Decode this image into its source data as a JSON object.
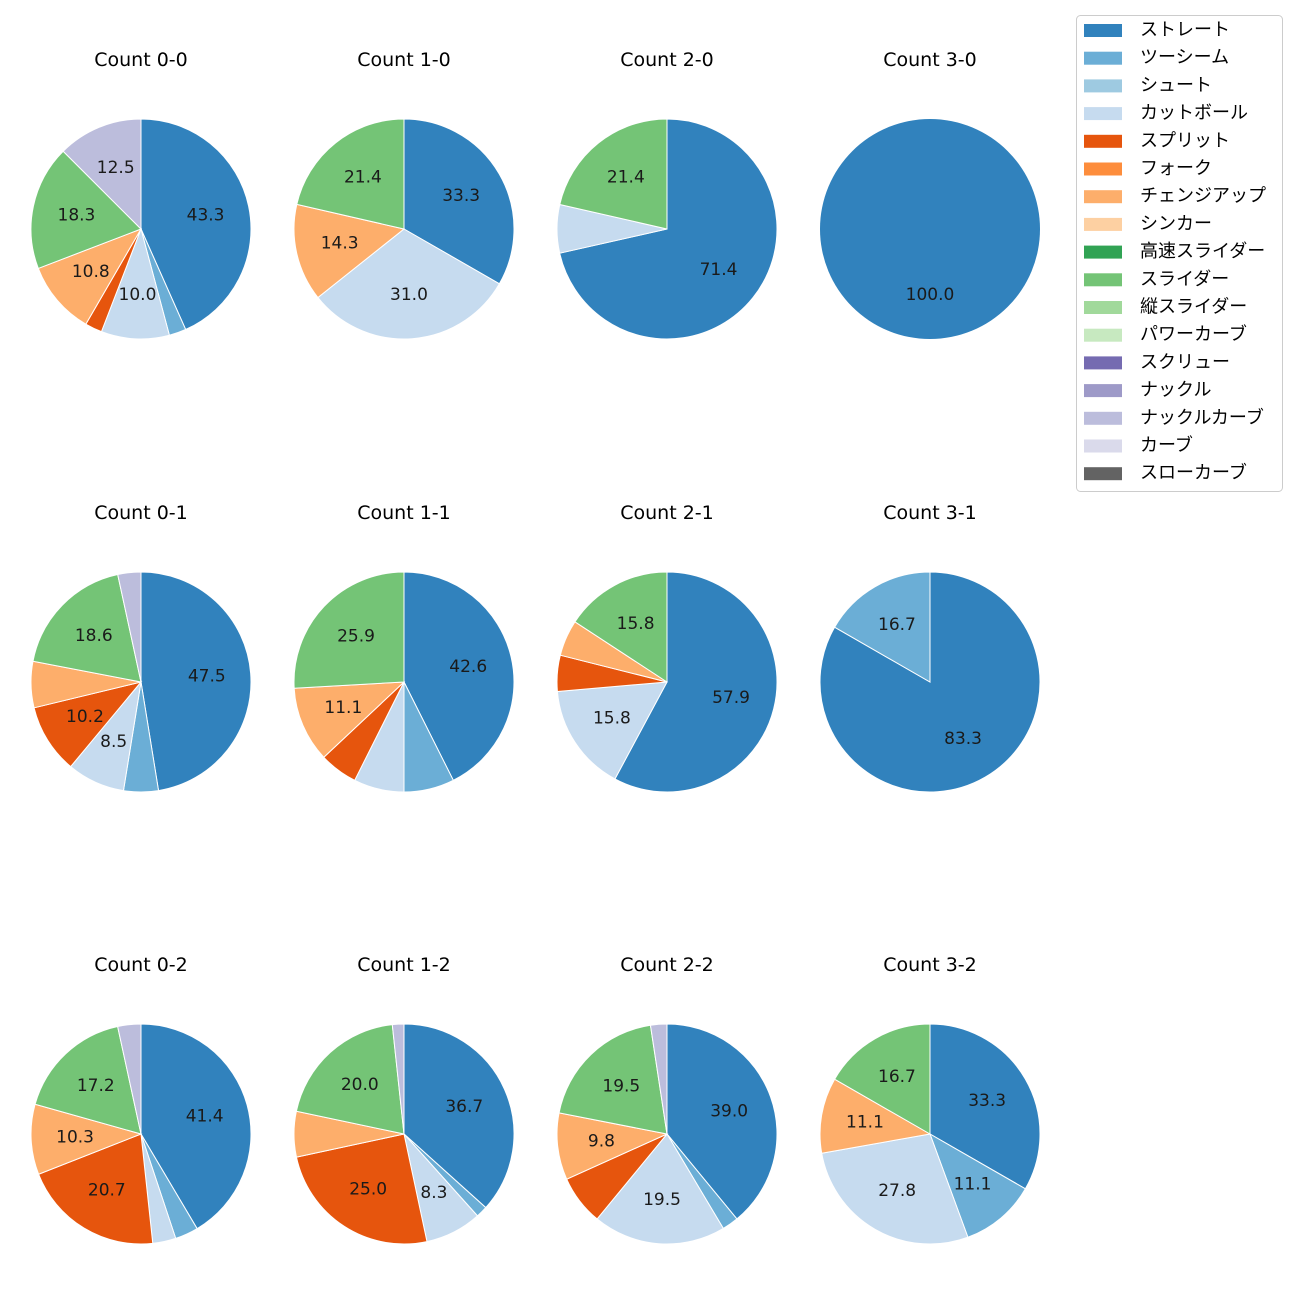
{
  "chart_data": {
    "type": "pie",
    "label_format": "percent, 1 decimal, shown for slices >= 8%",
    "legend": {
      "placement": "top-right",
      "entries": [
        {
          "name": "ストレート",
          "color": "#3182bd"
        },
        {
          "name": "ツーシーム",
          "color": "#6baed6"
        },
        {
          "name": "シュート",
          "color": "#9ecae1"
        },
        {
          "name": "カットボール",
          "color": "#c6dbef"
        },
        {
          "name": "スプリット",
          "color": "#e6550d"
        },
        {
          "name": "フォーク",
          "color": "#fd8d3c"
        },
        {
          "name": "チェンジアップ",
          "color": "#fdae6b"
        },
        {
          "name": "シンカー",
          "color": "#fdd0a2"
        },
        {
          "name": "高速スライダー",
          "color": "#31a354"
        },
        {
          "name": "スライダー",
          "color": "#74c476"
        },
        {
          "name": "縦スライダー",
          "color": "#a1d99b"
        },
        {
          "name": "パワーカーブ",
          "color": "#c7e9c0"
        },
        {
          "name": "スクリュー",
          "color": "#756bb1"
        },
        {
          "name": "ナックル",
          "color": "#9e9ac8"
        },
        {
          "name": "ナックルカーブ",
          "color": "#bcbddc"
        },
        {
          "name": "カーブ",
          "color": "#dadaeb"
        },
        {
          "name": "スローカーブ",
          "color": "#636363"
        }
      ]
    },
    "pies": [
      {
        "title": "Count 0-0",
        "slices": [
          [
            "ストレート",
            43.3
          ],
          [
            "ツーシーム",
            2.5
          ],
          [
            "カットボール",
            10.0
          ],
          [
            "スプリット",
            2.5
          ],
          [
            "チェンジアップ",
            10.8
          ],
          [
            "スライダー",
            18.3
          ],
          [
            "ナックルカーブ",
            12.5
          ]
        ]
      },
      {
        "title": "Count 1-0",
        "slices": [
          [
            "ストレート",
            33.3
          ],
          [
            "カットボール",
            31.0
          ],
          [
            "チェンジアップ",
            14.3
          ],
          [
            "スライダー",
            21.4
          ]
        ]
      },
      {
        "title": "Count 2-0",
        "slices": [
          [
            "ストレート",
            71.4
          ],
          [
            "カットボール",
            7.1
          ],
          [
            "スライダー",
            21.4
          ]
        ]
      },
      {
        "title": "Count 3-0",
        "slices": [
          [
            "ストレート",
            100.0
          ]
        ]
      },
      {
        "title": "Count 0-1",
        "slices": [
          [
            "ストレート",
            47.5
          ],
          [
            "ツーシーム",
            5.1
          ],
          [
            "カットボール",
            8.5
          ],
          [
            "スプリット",
            10.2
          ],
          [
            "チェンジアップ",
            6.8
          ],
          [
            "スライダー",
            18.6
          ],
          [
            "ナックルカーブ",
            3.4
          ]
        ]
      },
      {
        "title": "Count 1-1",
        "slices": [
          [
            "ストレート",
            42.6
          ],
          [
            "ツーシーム",
            7.4
          ],
          [
            "カットボール",
            7.4
          ],
          [
            "スプリット",
            5.6
          ],
          [
            "チェンジアップ",
            11.1
          ],
          [
            "スライダー",
            25.9
          ]
        ]
      },
      {
        "title": "Count 2-1",
        "slices": [
          [
            "ストレート",
            57.9
          ],
          [
            "カットボール",
            15.8
          ],
          [
            "スプリット",
            5.3
          ],
          [
            "チェンジアップ",
            5.3
          ],
          [
            "スライダー",
            15.8
          ]
        ]
      },
      {
        "title": "Count 3-1",
        "slices": [
          [
            "ストレート",
            83.3
          ],
          [
            "ツーシーム",
            16.7
          ]
        ]
      },
      {
        "title": "Count 0-2",
        "slices": [
          [
            "ストレート",
            41.4
          ],
          [
            "ツーシーム",
            3.4
          ],
          [
            "カットボール",
            3.4
          ],
          [
            "スプリット",
            20.7
          ],
          [
            "チェンジアップ",
            10.3
          ],
          [
            "スライダー",
            17.2
          ],
          [
            "ナックルカーブ",
            3.4
          ]
        ]
      },
      {
        "title": "Count 1-2",
        "slices": [
          [
            "ストレート",
            36.7
          ],
          [
            "ツーシーム",
            1.7
          ],
          [
            "カットボール",
            8.3
          ],
          [
            "スプリット",
            25.0
          ],
          [
            "チェンジアップ",
            6.7
          ],
          [
            "スライダー",
            20.0
          ],
          [
            "ナックルカーブ",
            1.7
          ]
        ]
      },
      {
        "title": "Count 2-2",
        "slices": [
          [
            "ストレート",
            39.0
          ],
          [
            "ツーシーム",
            2.4
          ],
          [
            "カットボール",
            19.5
          ],
          [
            "スプリット",
            7.3
          ],
          [
            "チェンジアップ",
            9.8
          ],
          [
            "スライダー",
            19.5
          ],
          [
            "ナックルカーブ",
            2.4
          ]
        ]
      },
      {
        "title": "Count 3-2",
        "slices": [
          [
            "ストレート",
            33.3
          ],
          [
            "ツーシーム",
            11.1
          ],
          [
            "カットボール",
            27.8
          ],
          [
            "チェンジアップ",
            11.1
          ],
          [
            "スライダー",
            16.7
          ]
        ]
      }
    ]
  }
}
